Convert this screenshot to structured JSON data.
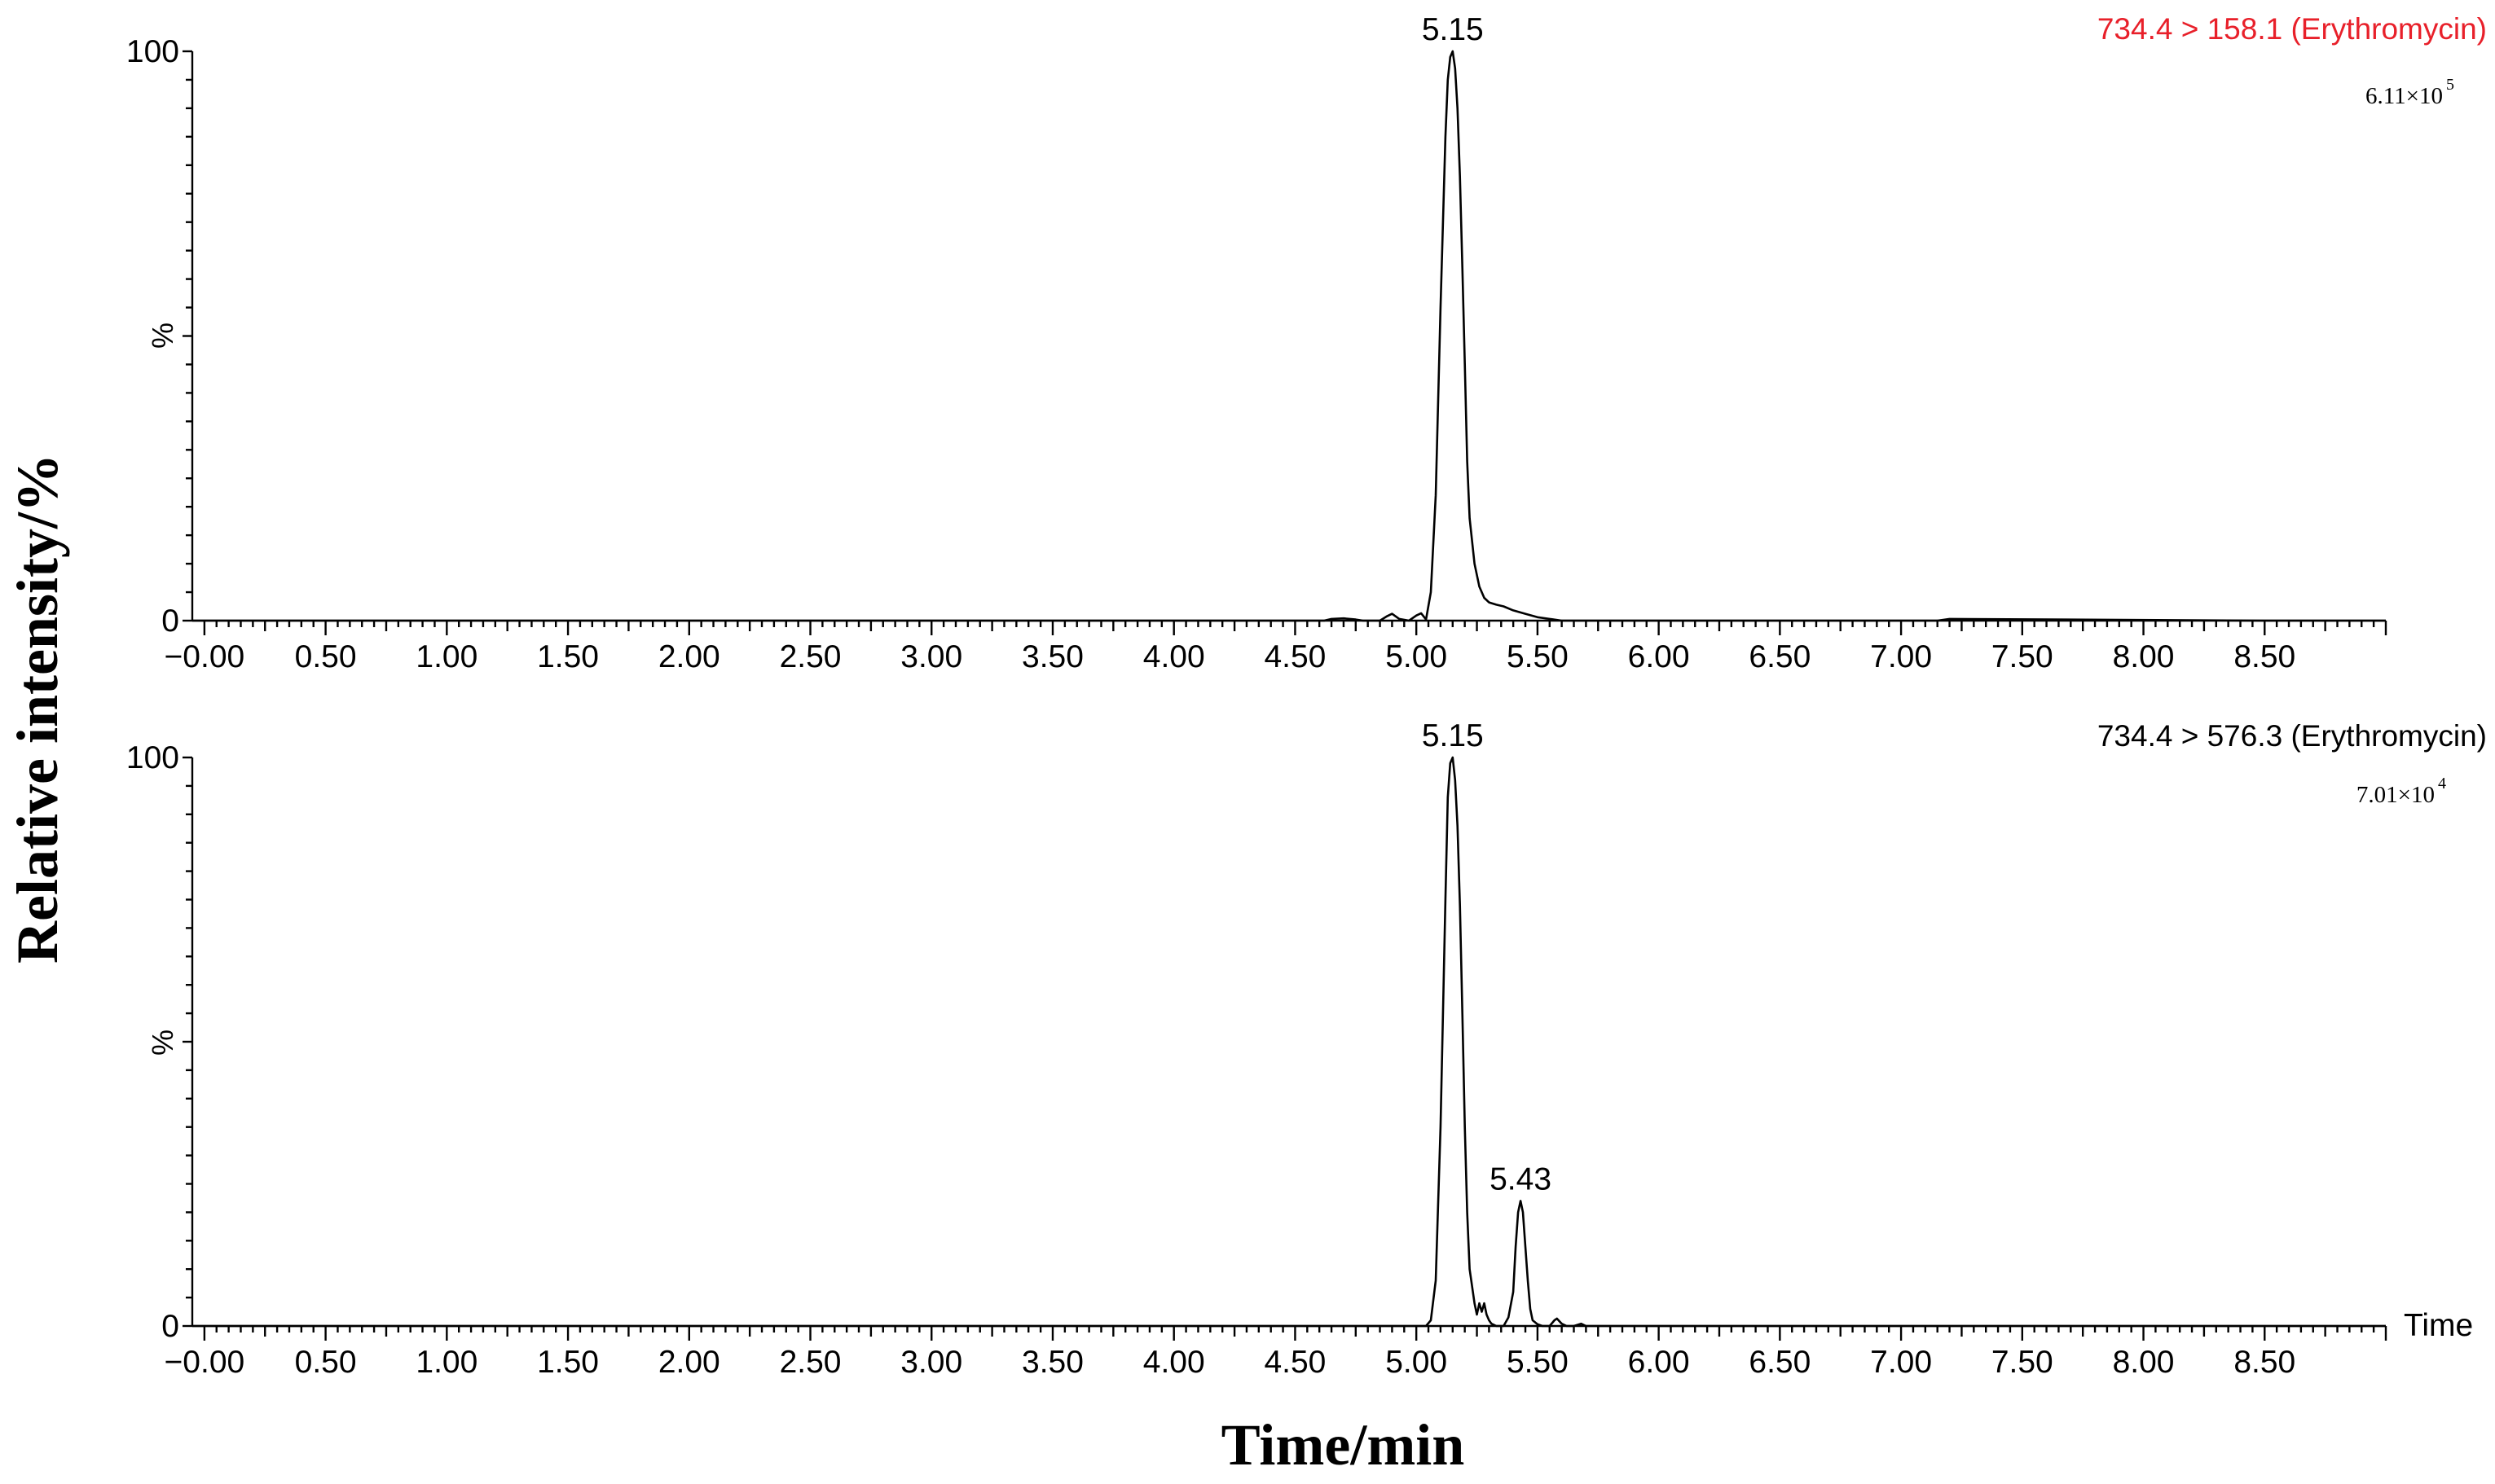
{
  "figure": {
    "ylabel": "Relative intensity/%",
    "xlabel": "Time/min"
  },
  "chart_data": [
    {
      "type": "line",
      "title": "734.4 > 158.1 (Erythromycin)",
      "title_color": "#e8202a",
      "scale": {
        "base": "6.11×10",
        "exp": "5"
      },
      "x_unit_label": "",
      "y_mid_label": "%",
      "xlim": [
        -0.05,
        9.0
      ],
      "ylim": [
        0,
        100
      ],
      "x_ticks": [
        "-0.00",
        "0.50",
        "1.00",
        "1.50",
        "2.00",
        "2.50",
        "3.00",
        "3.50",
        "4.00",
        "4.50",
        "5.00",
        "5.50",
        "6.00",
        "6.50",
        "7.00",
        "7.50",
        "8.00",
        "8.50"
      ],
      "y_ticks": [
        "0",
        "100"
      ],
      "annotations": [
        {
          "x": 5.15,
          "y": 100,
          "text": "5.15"
        }
      ],
      "series": [
        {
          "x": [
            -0.05,
            4.62,
            4.65,
            4.7,
            4.75,
            4.78,
            4.85,
            4.88,
            4.9,
            4.93,
            4.97,
            5.0,
            5.02,
            5.04,
            5.06,
            5.08,
            5.1,
            5.12,
            5.13,
            5.14,
            5.15,
            5.16,
            5.17,
            5.18,
            5.19,
            5.2,
            5.21,
            5.22,
            5.24,
            5.26,
            5.28,
            5.3,
            5.33,
            5.36,
            5.4,
            5.45,
            5.5,
            5.55,
            5.6,
            6.0,
            7.15,
            7.2,
            8.5,
            9.0
          ],
          "y": [
            0,
            0,
            0.3,
            0.4,
            0.2,
            0,
            0,
            0.8,
            1.2,
            0.3,
            0,
            0.9,
            1.3,
            0.2,
            5,
            22,
            55,
            85,
            95,
            99,
            100,
            97,
            90,
            78,
            62,
            45,
            28,
            18,
            10,
            6,
            4,
            3.2,
            2.8,
            2.5,
            1.8,
            1.2,
            0.6,
            0.3,
            0,
            0,
            0,
            0.3,
            0,
            0
          ]
        }
      ]
    },
    {
      "type": "line",
      "title": "734.4 > 576.3 (Erythromycin)",
      "title_color": "#000000",
      "scale": {
        "base": "7.01×10",
        "exp": "4"
      },
      "x_unit_label": "Time",
      "y_mid_label": "%",
      "xlim": [
        -0.05,
        9.0
      ],
      "ylim": [
        0,
        100
      ],
      "x_ticks": [
        "-0.00",
        "0.50",
        "1.00",
        "1.50",
        "2.00",
        "2.50",
        "3.00",
        "3.50",
        "4.00",
        "4.50",
        "5.00",
        "5.50",
        "6.00",
        "6.50",
        "7.00",
        "7.50",
        "8.00",
        "8.50"
      ],
      "y_ticks": [
        "0",
        "100"
      ],
      "annotations": [
        {
          "x": 5.15,
          "y": 100,
          "text": "5.15"
        },
        {
          "x": 5.43,
          "y": 22,
          "text": "5.43"
        }
      ],
      "series": [
        {
          "x": [
            -0.05,
            5.04,
            5.06,
            5.08,
            5.1,
            5.12,
            5.13,
            5.14,
            5.15,
            5.16,
            5.17,
            5.18,
            5.19,
            5.2,
            5.21,
            5.22,
            5.24,
            5.25,
            5.26,
            5.27,
            5.28,
            5.29,
            5.3,
            5.31,
            5.33,
            5.36,
            5.38,
            5.4,
            5.41,
            5.42,
            5.43,
            5.44,
            5.45,
            5.46,
            5.47,
            5.48,
            5.5,
            5.52,
            5.55,
            5.57,
            5.58,
            5.6,
            5.62,
            5.65,
            5.68,
            5.7,
            9.0
          ],
          "y": [
            0,
            0,
            1,
            8,
            35,
            75,
            93,
            99,
            100,
            96,
            88,
            74,
            55,
            35,
            20,
            10,
            4,
            2,
            4,
            2.5,
            4,
            2,
            1,
            0.4,
            0,
            0,
            1.5,
            6,
            14,
            20,
            22,
            20,
            14,
            8,
            3,
            1,
            0.3,
            0,
            0,
            1,
            1.3,
            0.4,
            0,
            0,
            0.4,
            0,
            0
          ]
        }
      ]
    }
  ]
}
